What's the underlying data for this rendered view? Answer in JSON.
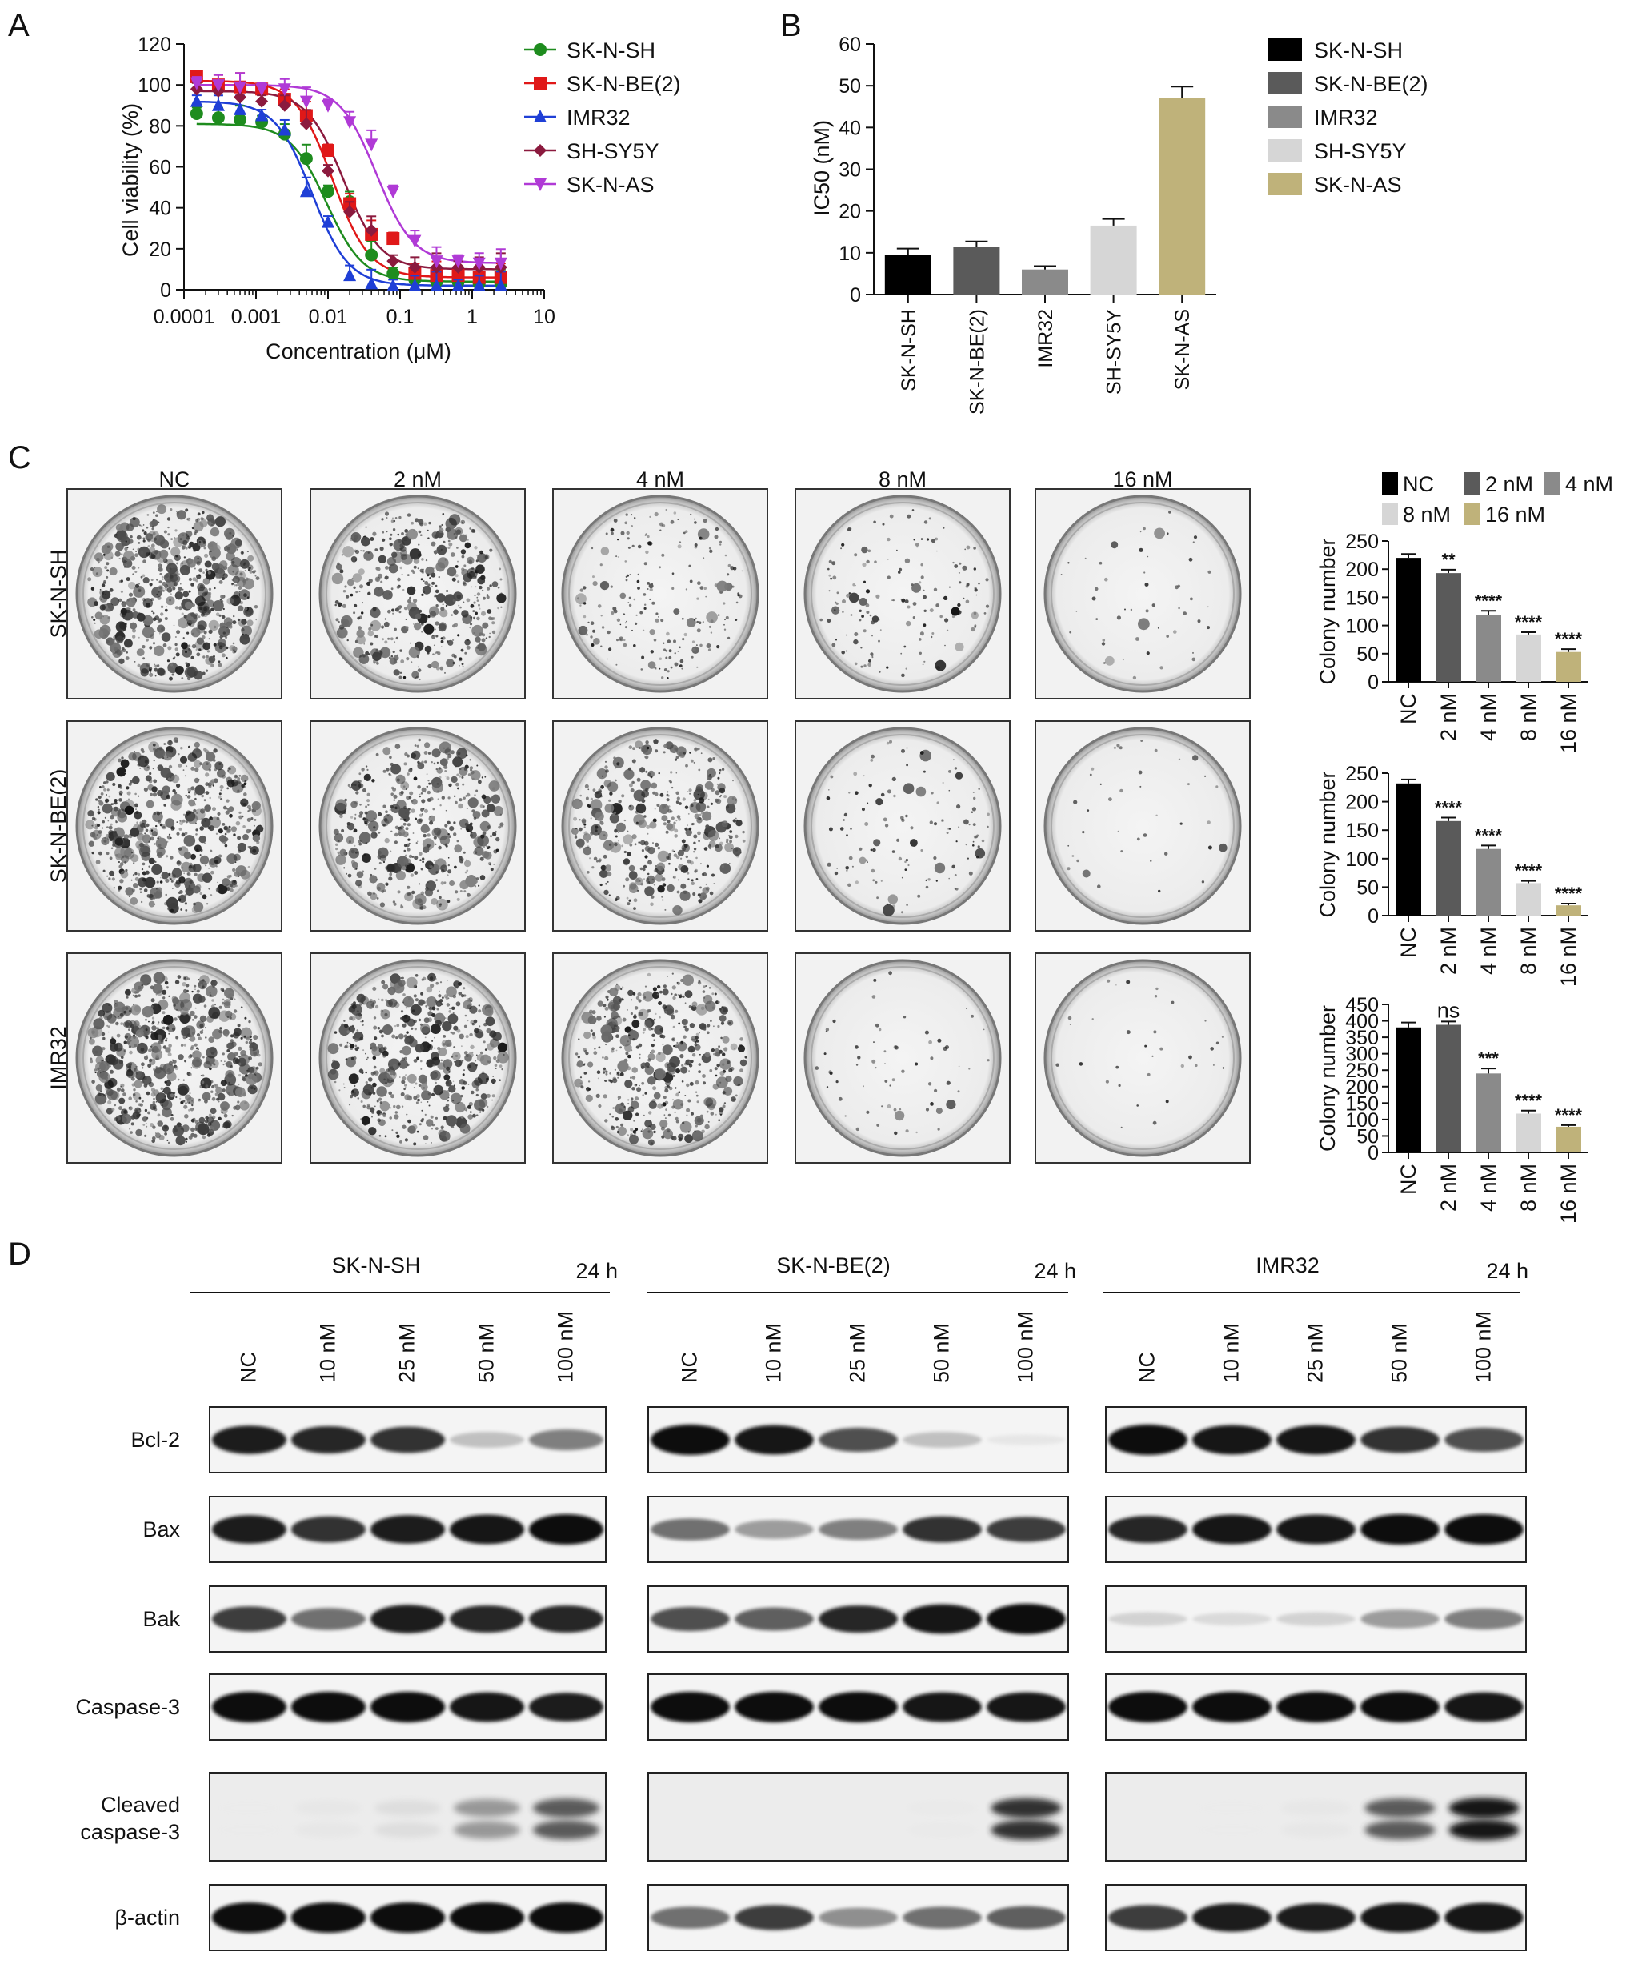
{
  "panels": {
    "A": {
      "letter": "A",
      "chart_data": {
        "type": "line",
        "xscale": "log",
        "xlim": [
          0.0001,
          10
        ],
        "ylim": [
          0,
          120
        ],
        "xticks": [
          "0.0001",
          "0.001",
          "0.01",
          "0.1",
          "1",
          "10"
        ],
        "yticks": [
          "0",
          "20",
          "40",
          "60",
          "80",
          "100",
          "120"
        ],
        "xlabel": "Concentration (μM)",
        "ylabel": "Cell viability (%)",
        "legend": "top-right",
        "x": [
          0.00015,
          0.0003,
          0.0006,
          0.0012,
          0.0025,
          0.005,
          0.01,
          0.02,
          0.04,
          0.08,
          0.16,
          0.32,
          0.64,
          1.25,
          2.5
        ],
        "series": [
          {
            "name": "SK-N-SH",
            "color": "#1e8c1e",
            "marker": "circle",
            "values": [
              86,
              84,
              83,
              82,
              76,
              64,
              48,
              43,
              17,
              8,
              5,
              4,
              4,
              3,
              3
            ],
            "top": 81,
            "bottom": 4,
            "ic50": 0.0095
          },
          {
            "name": "SK-N-BE(2)",
            "color": "#e01818",
            "marker": "square",
            "values": [
              104,
              100,
              99,
              98,
              93,
              85,
              68,
              42,
              27,
              25,
              8,
              7,
              7,
              6,
              6
            ],
            "top": 102,
            "bottom": 6,
            "ic50": 0.0115
          },
          {
            "name": "IMR32",
            "color": "#1f3fd6",
            "marker": "triangle-up",
            "values": [
              92,
              90,
              88,
              85,
              78,
              48,
              33,
              7,
              3,
              2,
              2,
              2,
              2,
              2,
              2
            ],
            "top": 92,
            "bottom": 2,
            "ic50": 0.006
          },
          {
            "name": "SH-SY5Y",
            "color": "#8b1a3e",
            "marker": "diamond",
            "values": [
              98,
              97,
              94,
              92,
              90,
              81,
              58,
              38,
              29,
              14,
              11,
              11,
              11,
              11,
              11
            ],
            "top": 97,
            "bottom": 10,
            "ic50": 0.0165
          },
          {
            "name": "SK-N-AS",
            "color": "#b03ad6",
            "marker": "triangle-down",
            "values": [
              101,
              100,
              99,
              98,
              98,
              92,
              90,
              82,
              71,
              48,
              24,
              14,
              14,
              13,
              13
            ],
            "top": 100,
            "bottom": 13,
            "ic50": 0.047
          }
        ]
      }
    },
    "B": {
      "letter": "B",
      "chart_data": {
        "type": "bar",
        "categories": [
          "SK-N-SH",
          "SK-N-BE(2)",
          "IMR32",
          "SH-SY5Y",
          "SK-N-AS"
        ],
        "values": [
          9.5,
          11.5,
          6,
          16.5,
          47
        ],
        "errors": [
          1.5,
          1.2,
          0.8,
          1.6,
          2.8
        ],
        "colors": [
          "#000000",
          "#5a5a5a",
          "#8a8a8a",
          "#d6d6d6",
          "#bfb27a"
        ],
        "ylabel": "IC50 (nM)",
        "ylim": [
          0,
          60
        ],
        "yticks": [
          "0",
          "10",
          "20",
          "30",
          "40",
          "50",
          "60"
        ],
        "legend": "top-right"
      }
    },
    "C": {
      "letter": "C",
      "column_labels": [
        "NC",
        "2 nM",
        "4 nM",
        "8 nM",
        "16 nM"
      ],
      "row_labels": [
        "SK-N-SH",
        "SK-N-BE(2)",
        "IMR32"
      ],
      "legend": [
        {
          "name": "NC",
          "color": "#000000"
        },
        {
          "name": "2 nM",
          "color": "#5a5a5a"
        },
        {
          "name": "4 nM",
          "color": "#8a8a8a"
        },
        {
          "name": "8 nM",
          "color": "#d6d6d6"
        },
        {
          "name": "16 nM",
          "color": "#bfb27a"
        }
      ],
      "chart_data": [
        {
          "type": "bar",
          "categories": [
            "NC",
            "2 nM",
            "4 nM",
            "8 nM",
            "16 nM"
          ],
          "values": [
            220,
            193,
            118,
            84,
            53
          ],
          "errors": [
            7,
            6,
            8,
            4,
            5
          ],
          "significance": [
            "",
            "**",
            "****",
            "****",
            "****"
          ],
          "ylabel": "Colony number",
          "ylim": [
            0,
            250
          ],
          "yticks": [
            "0",
            "50",
            "100",
            "150",
            "200",
            "250"
          ]
        },
        {
          "type": "bar",
          "categories": [
            "NC",
            "2 nM",
            "4 nM",
            "8 nM",
            "16 nM"
          ],
          "values": [
            232,
            166,
            117,
            57,
            18
          ],
          "errors": [
            7,
            6,
            6,
            4,
            3
          ],
          "significance": [
            "",
            "****",
            "****",
            "****",
            "****"
          ],
          "ylabel": "Colony number",
          "ylim": [
            0,
            250
          ],
          "yticks": [
            "0",
            "50",
            "100",
            "150",
            "200",
            "250"
          ]
        },
        {
          "type": "bar",
          "categories": [
            "NC",
            "2 nM",
            "4 nM",
            "8 nM",
            "16 nM"
          ],
          "values": [
            380,
            388,
            240,
            118,
            78
          ],
          "errors": [
            15,
            10,
            15,
            9,
            5
          ],
          "significance": [
            "",
            "ns",
            "***",
            "****",
            "****"
          ],
          "ylabel": "Colony number",
          "ylim": [
            0,
            450
          ],
          "yticks": [
            "0",
            "50",
            "100",
            "150",
            "200",
            "250",
            "300",
            "350",
            "400",
            "450"
          ]
        }
      ],
      "plate_density": [
        [
          0.95,
          0.7,
          0.35,
          0.25,
          0.08
        ],
        [
          0.9,
          0.75,
          0.7,
          0.2,
          0.06
        ],
        [
          1.0,
          0.85,
          0.75,
          0.1,
          0.05
        ]
      ]
    },
    "D": {
      "letter": "D",
      "groups": [
        {
          "name": "SK-N-SH",
          "time": "24 h"
        },
        {
          "name": "SK-N-BE(2)",
          "time": "24 h"
        },
        {
          "name": "IMR32",
          "time": "24 h"
        }
      ],
      "lane_labels": [
        "NC",
        "10 nM",
        "25 nM",
        "50 nM",
        "100 nM"
      ],
      "blots": [
        {
          "label": "Bcl-2",
          "intensity": [
            [
              0.9,
              0.85,
              0.8,
              0.3,
              0.55
            ],
            [
              1.0,
              0.95,
              0.7,
              0.3,
              0.05
            ],
            [
              1.0,
              0.95,
              0.95,
              0.8,
              0.7
            ]
          ],
          "double": false
        },
        {
          "label": "Bax",
          "intensity": [
            [
              0.9,
              0.8,
              0.9,
              0.95,
              1.0
            ],
            [
              0.6,
              0.45,
              0.55,
              0.8,
              0.75
            ],
            [
              0.85,
              0.95,
              0.95,
              1.0,
              1.0
            ]
          ],
          "double": false
        },
        {
          "label": "Bak",
          "intensity": [
            [
              0.75,
              0.6,
              0.9,
              0.85,
              0.85
            ],
            [
              0.7,
              0.65,
              0.85,
              0.95,
              1.0
            ],
            [
              0.2,
              0.15,
              0.2,
              0.45,
              0.55
            ]
          ],
          "double": false
        },
        {
          "label": "Caspase-3",
          "intensity": [
            [
              1.0,
              1.0,
              1.0,
              0.95,
              0.9
            ],
            [
              1.0,
              1.0,
              1.0,
              0.95,
              0.95
            ],
            [
              1.0,
              1.0,
              1.0,
              1.0,
              0.95
            ]
          ],
          "double": false
        },
        {
          "label": "Cleaved caspase-3",
          "label_lines": [
            "Cleaved",
            "caspase-3"
          ],
          "intensity": [
            [
              0.02,
              0.1,
              0.2,
              0.55,
              0.75
            ],
            [
              0.0,
              0.0,
              0.0,
              0.05,
              0.85
            ],
            [
              0.0,
              0.02,
              0.1,
              0.75,
              0.95
            ]
          ],
          "double": true
        },
        {
          "label": "β-actin",
          "intensity": [
            [
              1.0,
              1.0,
              1.0,
              1.0,
              1.0
            ],
            [
              0.6,
              0.75,
              0.5,
              0.6,
              0.65
            ],
            [
              0.75,
              0.9,
              0.9,
              0.95,
              0.95
            ]
          ],
          "double": false
        }
      ]
    }
  }
}
